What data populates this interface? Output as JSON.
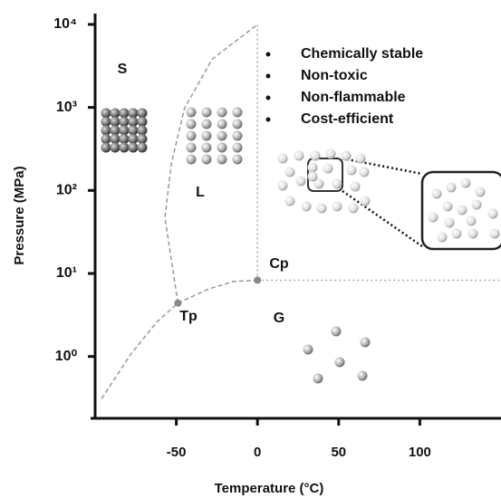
{
  "chart_data": {
    "type": "line",
    "x_label": "Temperature (°C)",
    "y_label": "Pressure (MPa)",
    "xlim": [
      -100,
      150
    ],
    "xticks": [
      -50,
      0,
      50,
      100
    ],
    "ylim": [
      0.18,
      13500
    ],
    "log_y": true,
    "yticks": [
      {
        "value": 1,
        "label": "10⁰"
      },
      {
        "value": 10,
        "label": "10¹"
      },
      {
        "value": 100,
        "label": "10²"
      },
      {
        "value": 1000,
        "label": "10³"
      },
      {
        "value": 10000,
        "label": "10⁴"
      }
    ],
    "series": [
      {
        "color": "#999999",
        "dash": "dashed",
        "x": [
          -96,
          -78,
          -62,
          -49
        ],
        "values": [
          0.31,
          1.07,
          2.6,
          4.4
        ]
      },
      {
        "color": "#999999",
        "dash": "dashed",
        "x": [
          -49,
          -30,
          -15,
          0
        ],
        "values": [
          4.4,
          6.5,
          8,
          8.3
        ]
      },
      {
        "color": "#999999",
        "dash": "dashed",
        "x": [
          -49,
          -57,
          -53,
          -45,
          -28,
          0
        ],
        "values": [
          4.4,
          47,
          213,
          970,
          3800,
          10000
        ]
      },
      {
        "color": "#aaaaaa",
        "dash": "dotted",
        "x": [
          0,
          0
        ],
        "values": [
          8.3,
          10000
        ]
      },
      {
        "color": "#aaaaaa",
        "dash": "dotted",
        "x": [
          0,
          150
        ],
        "values": [
          8.3,
          8.3
        ]
      }
    ],
    "points": {
      "x": [
        -49,
        0
      ],
      "values": [
        4.4,
        8.3
      ],
      "color": "#888888"
    },
    "annotations": [
      "S",
      "L",
      "G",
      "Tp",
      "Cp"
    ],
    "properties": [
      "Chemically stable",
      "Non-toxic",
      "Non-flammable",
      "Cost-efficient"
    ]
  }
}
